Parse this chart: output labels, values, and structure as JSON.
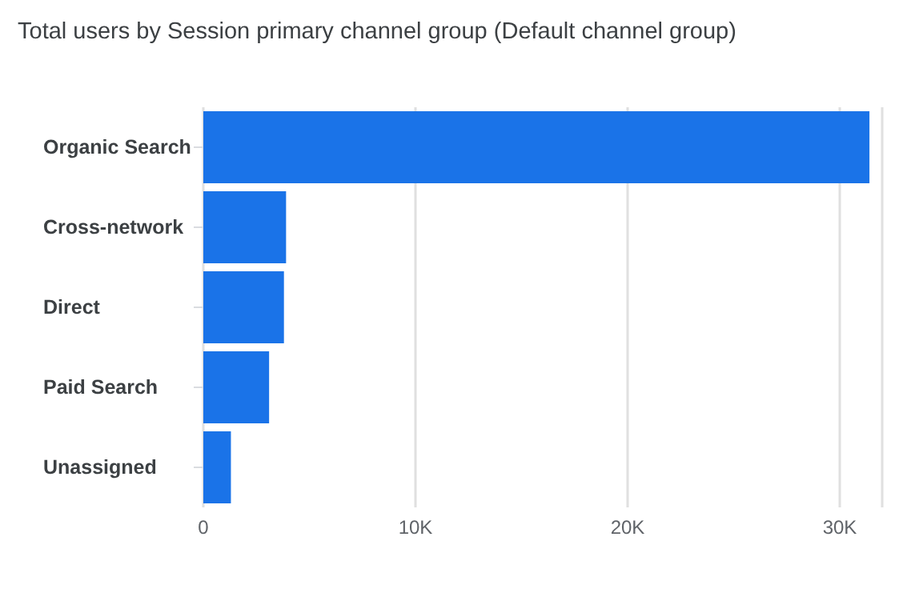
{
  "chart_data": {
    "type": "bar",
    "orientation": "horizontal",
    "title": "Total users by Session primary channel group (Default channel group)",
    "categories": [
      "Organic Search",
      "Cross-network",
      "Direct",
      "Paid Search",
      "Unassigned"
    ],
    "values": [
      31400,
      3900,
      3800,
      3100,
      1300
    ],
    "color": "#1a73e8",
    "xlim": [
      0,
      32000
    ],
    "xticks": [
      0,
      {
        "value": 10000,
        "label": "10K"
      },
      {
        "value": 20000,
        "label": "20K"
      },
      {
        "value": 30000,
        "label": "30K"
      }
    ],
    "grid": "x"
  }
}
